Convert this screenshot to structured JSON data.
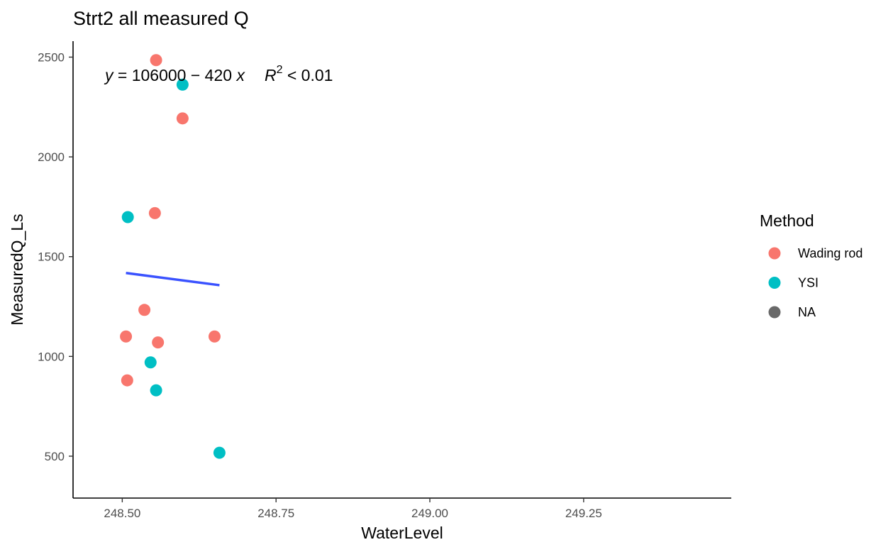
{
  "chart_data": {
    "type": "scatter",
    "title": "Strt2 all measured Q",
    "xlabel": "WaterLevel",
    "ylabel": "MeasuredQ_Ls",
    "xlim": [
      248.42,
      249.49
    ],
    "ylim": [
      290,
      2580
    ],
    "x_ticks": [
      248.5,
      248.75,
      249.0,
      249.25
    ],
    "x_tick_labels": [
      "248.50",
      "248.75",
      "249.00",
      "249.25"
    ],
    "y_ticks": [
      500,
      1000,
      1500,
      2000,
      2500
    ],
    "y_tick_labels": [
      "500",
      "1000",
      "1500",
      "2000",
      "2500"
    ],
    "grid": false,
    "legend": {
      "title": "Method",
      "position": "right",
      "entries": [
        {
          "label": "Wading rod",
          "color": "#F8766D"
        },
        {
          "label": "YSI",
          "color": "#00BFC4"
        },
        {
          "label": "NA",
          "color": "#696969"
        }
      ]
    },
    "series": [
      {
        "name": "Wading rod",
        "color": "#F8766D",
        "points": [
          {
            "x": 248.555,
            "y": 2485
          },
          {
            "x": 248.598,
            "y": 2193
          },
          {
            "x": 248.553,
            "y": 1718
          },
          {
            "x": 248.536,
            "y": 1233
          },
          {
            "x": 248.506,
            "y": 1100
          },
          {
            "x": 248.558,
            "y": 1070
          },
          {
            "x": 248.65,
            "y": 1100
          },
          {
            "x": 248.508,
            "y": 880
          }
        ]
      },
      {
        "name": "YSI",
        "color": "#00BFC4",
        "points": [
          {
            "x": 248.598,
            "y": 2362
          },
          {
            "x": 248.509,
            "y": 1698
          },
          {
            "x": 248.546,
            "y": 970
          },
          {
            "x": 248.555,
            "y": 830
          },
          {
            "x": 248.658,
            "y": 517
          }
        ]
      }
    ],
    "fit_line": {
      "color": "#3A52FF",
      "x": [
        248.506,
        248.658
      ],
      "y": [
        1418,
        1357
      ]
    },
    "annotation": {
      "y_var": "y",
      "equals": " = 106000 − 420 ",
      "x_var": "x",
      "r_var": "R",
      "r_sup": "2",
      "r_rest": " < 0.01"
    }
  }
}
